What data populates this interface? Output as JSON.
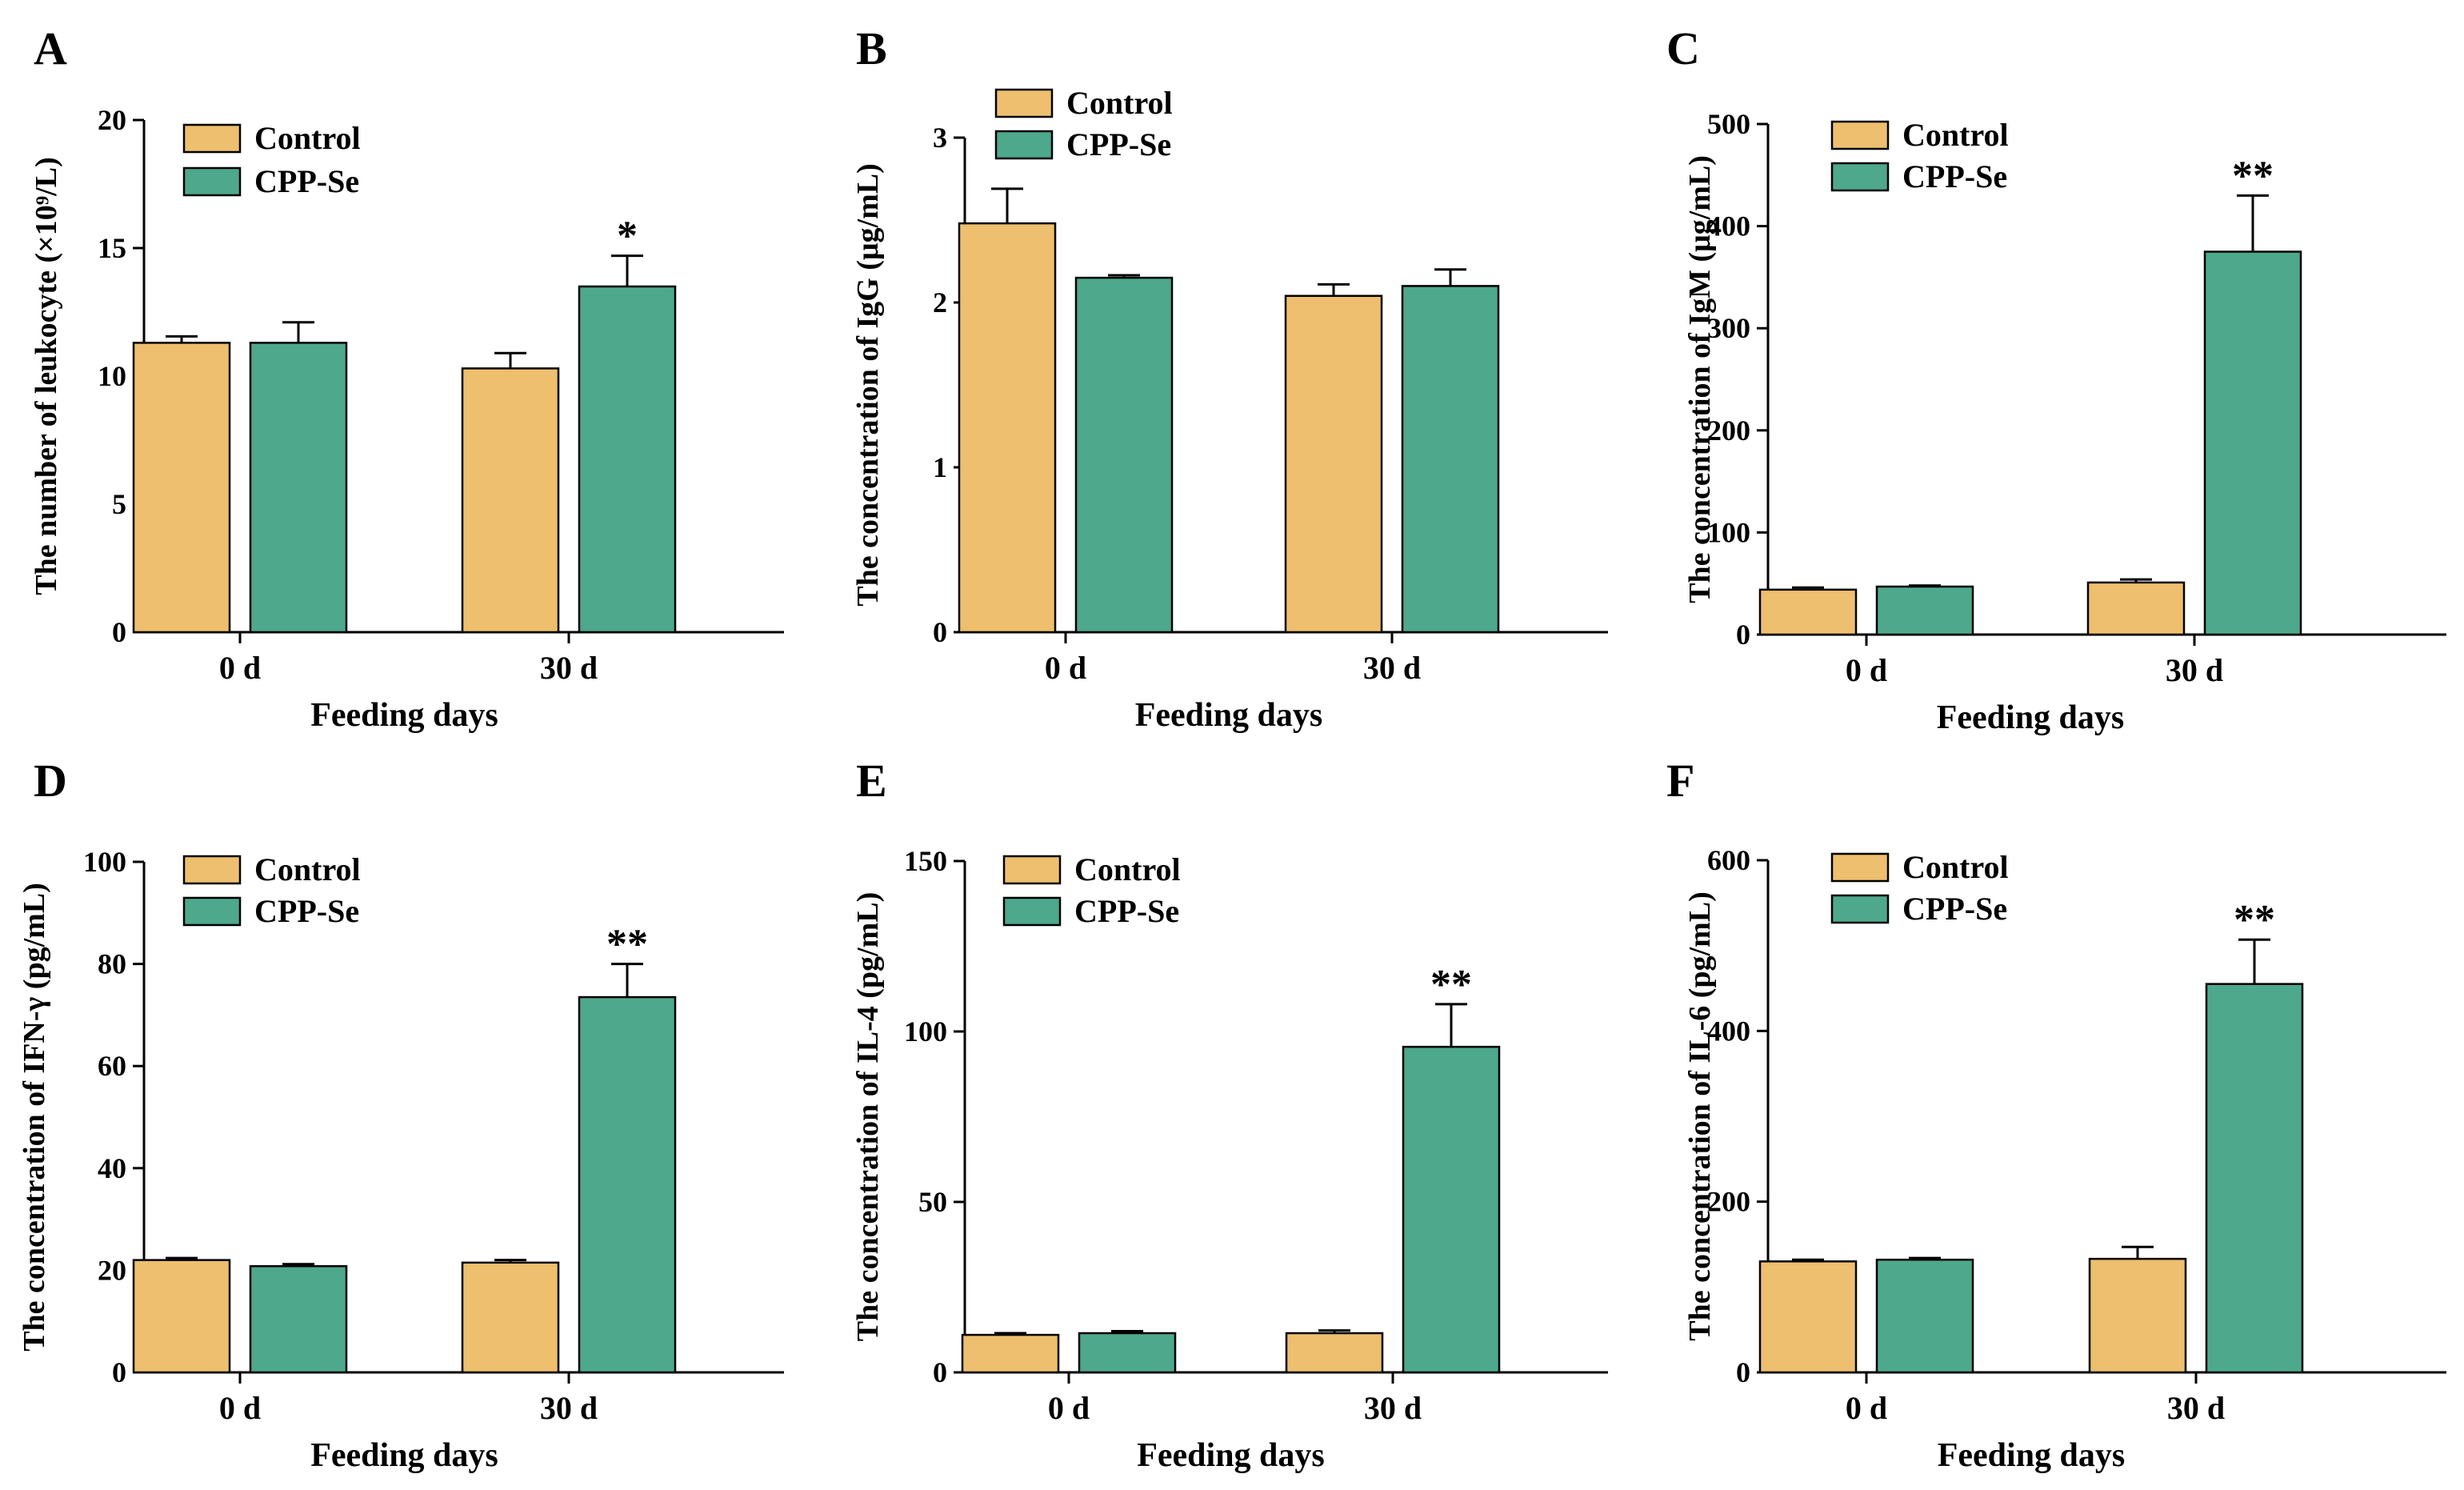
{
  "chart_data": [
    {
      "panel": "A",
      "type": "bar",
      "categories": [
        "0 d",
        "30 d"
      ],
      "series": [
        {
          "name": "Control",
          "values": [
            11.3,
            10.3
          ],
          "errors": [
            0.25,
            0.6
          ]
        },
        {
          "name": "CPP-Se",
          "values": [
            11.3,
            13.5
          ],
          "errors": [
            0.8,
            1.2
          ]
        }
      ],
      "significance": [
        null,
        "*"
      ],
      "ylim": [
        0,
        20
      ],
      "yticks": [
        "0",
        "5",
        "10",
        "15",
        "20"
      ],
      "xlabel": "Feeding days",
      "ylabel": "The number of leukocyte (×10⁹/L)",
      "legend": [
        "Control",
        "CPP-Se"
      ]
    },
    {
      "panel": "B",
      "type": "bar",
      "categories": [
        "0 d",
        "30 d"
      ],
      "series": [
        {
          "name": "Control",
          "values": [
            2.48,
            2.04
          ],
          "errors": [
            0.21,
            0.07
          ]
        },
        {
          "name": "CPP-Se",
          "values": [
            2.15,
            2.1
          ],
          "errors": [
            0.015,
            0.1
          ]
        }
      ],
      "significance": [
        null,
        null
      ],
      "ylim": [
        0,
        3
      ],
      "yticks": [
        "0",
        "1",
        "2",
        "3"
      ],
      "xlabel": "Feeding days",
      "ylabel": "The concentration of IgG (μg/mL)",
      "legend": [
        "Control",
        "CPP-Se"
      ]
    },
    {
      "panel": "C",
      "type": "bar",
      "categories": [
        "0 d",
        "30 d"
      ],
      "series": [
        {
          "name": "Control",
          "values": [
            44,
            51
          ],
          "errors": [
            2,
            3
          ]
        },
        {
          "name": "CPP-Se",
          "values": [
            47,
            375
          ],
          "errors": [
            1,
            55
          ]
        }
      ],
      "significance": [
        null,
        "**"
      ],
      "ylim": [
        0,
        500
      ],
      "yticks": [
        "0",
        "100",
        "200",
        "300",
        "400",
        "500"
      ],
      "xlabel": "Feeding days",
      "ylabel": "The concentration of IgM (μg/mL)",
      "legend": [
        "Control",
        "CPP-Se"
      ]
    },
    {
      "panel": "D",
      "type": "bar",
      "categories": [
        "0 d",
        "30 d"
      ],
      "series": [
        {
          "name": "Control",
          "values": [
            22.0,
            21.5
          ],
          "errors": [
            0.4,
            0.5
          ]
        },
        {
          "name": "CPP-Se",
          "values": [
            20.8,
            73.5
          ],
          "errors": [
            0.4,
            6.5
          ]
        }
      ],
      "significance": [
        null,
        "**"
      ],
      "ylim": [
        0,
        100
      ],
      "yticks": [
        "0",
        "20",
        "40",
        "60",
        "80",
        "100"
      ],
      "xlabel": "Feeding days",
      "ylabel": "The concentration of IFN-γ (pg/mL)",
      "legend": [
        "Control",
        "CPP-Se"
      ]
    },
    {
      "panel": "E",
      "type": "bar",
      "categories": [
        "0 d",
        "30 d"
      ],
      "series": [
        {
          "name": "Control",
          "values": [
            11,
            11.5
          ],
          "errors": [
            0.5,
            0.8
          ]
        },
        {
          "name": "CPP-Se",
          "values": [
            11.5,
            95.5
          ],
          "errors": [
            0.6,
            12.5
          ]
        }
      ],
      "significance": [
        null,
        "**"
      ],
      "ylim": [
        0,
        150
      ],
      "yticks": [
        "0",
        "50",
        "100",
        "150"
      ],
      "xlabel": "Feeding days",
      "ylabel": "The concentration of IL-4 (pg/mL)",
      "legend": [
        "Control",
        "CPP-Se"
      ]
    },
    {
      "panel": "F",
      "type": "bar",
      "categories": [
        "0 d",
        "30 d"
      ],
      "series": [
        {
          "name": "Control",
          "values": [
            130,
            133
          ],
          "errors": [
            2,
            14
          ]
        },
        {
          "name": "CPP-Se",
          "values": [
            132,
            455
          ],
          "errors": [
            2,
            52
          ]
        }
      ],
      "significance": [
        null,
        "**"
      ],
      "ylim": [
        0,
        600
      ],
      "yticks": [
        "0",
        "200",
        "400",
        "600"
      ],
      "xlabel": "Feeding days",
      "ylabel": "The concentration of IL-6 (pg/mL)",
      "legend": [
        "Control",
        "CPP-Se"
      ]
    }
  ],
  "colors": {
    "Control": "#EDBF6E",
    "CPP-Se": "#4EA88C",
    "axis": "#000000"
  }
}
